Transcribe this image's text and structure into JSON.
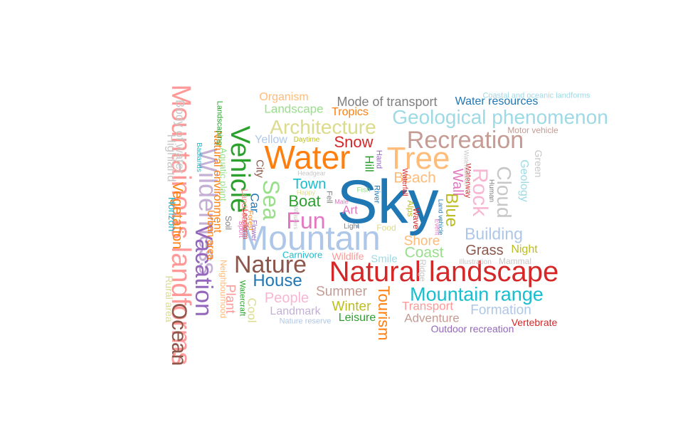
{
  "words": [
    {
      "text": "Sky",
      "color": "#1f77b4",
      "vertical": false
    },
    {
      "text": "Natural landscape",
      "color": "#d62728",
      "vertical": false
    },
    {
      "text": "Mountain",
      "color": "#aec7e8",
      "vertical": false
    },
    {
      "text": "Tree",
      "color": "#ffbb78",
      "vertical": false
    },
    {
      "text": "Water",
      "color": "#ff7f0e",
      "vertical": false
    },
    {
      "text": "Vehicle",
      "color": "#2ca02c",
      "vertical": true
    },
    {
      "text": "Mountainous landforms",
      "color": "#ff9896",
      "vertical": true
    },
    {
      "text": "Wilderness",
      "color": "#c5b0d5",
      "vertical": true
    },
    {
      "text": "Vacation",
      "color": "#9467bd",
      "vertical": true
    },
    {
      "text": "Recreation",
      "color": "#c49c94",
      "vertical": false
    },
    {
      "text": "Architecture",
      "color": "#dbdb8d",
      "vertical": false
    },
    {
      "text": "Geological phenomenon",
      "color": "#9edae5",
      "vertical": false
    },
    {
      "text": "Sea",
      "color": "#98df8a",
      "vertical": true
    },
    {
      "text": "Fun",
      "color": "#e377c2",
      "vertical": false
    },
    {
      "text": "Nature",
      "color": "#8c564b",
      "vertical": false
    },
    {
      "text": "Mountain range",
      "color": "#17becf",
      "vertical": false
    },
    {
      "text": "Rock",
      "color": "#f7b6d2",
      "vertical": true
    },
    {
      "text": "Cloud",
      "color": "#c7c7c7",
      "vertical": true
    },
    {
      "text": "Blue",
      "color": "#bcbd22",
      "vertical": true
    },
    {
      "text": "Ocean",
      "color": "#8c564b",
      "vertical": true
    },
    {
      "text": "House",
      "color": "#1f77b4",
      "vertical": false
    },
    {
      "text": "Building",
      "color": "#aec7e8",
      "vertical": false
    },
    {
      "text": "Tourism",
      "color": "#ff7f0e",
      "vertical": true
    },
    {
      "text": "Vegetation",
      "color": "#ff7f0e",
      "vertical": true
    },
    {
      "text": "Body of water",
      "color": "#c7c7c7",
      "vertical": true
    },
    {
      "text": "Highland",
      "color": "#c7c7c7",
      "vertical": true
    },
    {
      "text": "Natural environment",
      "color": "#ff7f0e",
      "vertical": true
    },
    {
      "text": "Beach",
      "color": "#ffbb78",
      "vertical": false
    },
    {
      "text": "Snow",
      "color": "#d62728",
      "vertical": false
    },
    {
      "text": "Boat",
      "color": "#2ca02c",
      "vertical": false
    },
    {
      "text": "Grass",
      "color": "#8c564b",
      "vertical": false
    },
    {
      "text": "Coast",
      "color": "#98df8a",
      "vertical": false
    },
    {
      "text": "Shore",
      "color": "#ffbb78",
      "vertical": false
    },
    {
      "text": "Winter",
      "color": "#bcbd22",
      "vertical": false
    },
    {
      "text": "Summer",
      "color": "#c49c94",
      "vertical": false
    },
    {
      "text": "People",
      "color": "#f7b6d2",
      "vertical": false
    },
    {
      "text": "Town",
      "color": "#17becf",
      "vertical": false
    },
    {
      "text": "Formation",
      "color": "#aec7e8",
      "vertical": false
    },
    {
      "text": "Mode of transport",
      "color": "#7f7f7f",
      "vertical": false
    },
    {
      "text": "Landscape",
      "color": "#98df8a",
      "vertical": false
    },
    {
      "text": "Wall",
      "color": "#e377c2",
      "vertical": true
    },
    {
      "text": "Landmark",
      "color": "#c5b0d5",
      "vertical": false
    },
    {
      "text": "Transport",
      "color": "#ff9896",
      "vertical": false
    },
    {
      "text": "Adventure",
      "color": "#c49c94",
      "vertical": false
    },
    {
      "text": "Geology",
      "color": "#9edae5",
      "vertical": true
    },
    {
      "text": "Art",
      "color": "#e377c2",
      "vertical": false
    },
    {
      "text": "Car",
      "color": "#1f77b4",
      "vertical": true
    },
    {
      "text": "Water resources",
      "color": "#1f77b4",
      "vertical": false
    },
    {
      "text": "Organism",
      "color": "#ffbb78",
      "vertical": false
    },
    {
      "text": "Night",
      "color": "#bcbd22",
      "vertical": false
    },
    {
      "text": "Plant",
      "color": "#ff9896",
      "vertical": true
    },
    {
      "text": "Cool",
      "color": "#dbdb8d",
      "vertical": true
    },
    {
      "text": "Tropics",
      "color": "#ff7f0e",
      "vertical": false
    },
    {
      "text": "Leisure",
      "color": "#2ca02c",
      "vertical": false
    },
    {
      "text": "Yellow",
      "color": "#aec7e8",
      "vertical": false
    },
    {
      "text": "Vertebrate",
      "color": "#d62728",
      "vertical": false
    },
    {
      "text": "Hill",
      "color": "#2ca02c",
      "vertical": true
    },
    {
      "text": "Smile",
      "color": "#9edae5",
      "vertical": false
    },
    {
      "text": "Outdoor recreation",
      "color": "#9467bd",
      "vertical": false
    },
    {
      "text": "City",
      "color": "#8c564b",
      "vertical": true
    },
    {
      "text": "Wildlife",
      "color": "#ff9896",
      "vertical": false
    },
    {
      "text": "Mammal",
      "color": "#c7c7c7",
      "vertical": false
    },
    {
      "text": "Carnivore",
      "color": "#17becf",
      "vertical": false
    },
    {
      "text": "Green",
      "color": "#c7c7c7",
      "vertical": true
    },
    {
      "text": "Horizon",
      "color": "#17becf",
      "vertical": true
    },
    {
      "text": "Urban area",
      "color": "#ff7f0e",
      "vertical": true
    },
    {
      "text": "Motor vehicle",
      "color": "#c49c94",
      "vertical": false
    },
    {
      "text": "Rural area",
      "color": "#dbdb8d",
      "vertical": true
    },
    {
      "text": "Nature reserve",
      "color": "#aec7e8",
      "vertical": false
    },
    {
      "text": "Food",
      "color": "#dbdb8d",
      "vertical": false
    },
    {
      "text": "Aquatic plant",
      "color": "#98df8a",
      "vertical": true
    },
    {
      "text": "Ridge",
      "color": "#c7c7c7",
      "vertical": true
    },
    {
      "text": "Coastal and oceanic landforms",
      "color": "#9edae5",
      "vertical": false
    },
    {
      "text": "Alps",
      "color": "#bcbd22",
      "vertical": true
    },
    {
      "text": "Wave",
      "color": "#d62728",
      "vertical": true
    },
    {
      "text": "River",
      "color": "#1f77b4",
      "vertical": true
    },
    {
      "text": "Neighbourhood",
      "color": "#ffbb78",
      "vertical": true
    },
    {
      "text": "Watercraft",
      "color": "#2ca02c",
      "vertical": true
    },
    {
      "text": "Fish",
      "color": "#98df8a",
      "vertical": false
    },
    {
      "text": "Human",
      "color": "#7f7f7f",
      "vertical": true
    },
    {
      "text": "Landscape",
      "color": "#ff9896",
      "vertical": true
    },
    {
      "text": "Fell",
      "color": "#7f7f7f",
      "vertical": true
    },
    {
      "text": "Waterway",
      "color": "#d62728",
      "vertical": true
    },
    {
      "text": "Hand",
      "color": "#9467bd",
      "vertical": true
    },
    {
      "text": "Waterfall",
      "color": "#d62728",
      "vertical": true
    },
    {
      "text": "Daytime",
      "color": "#bcbd22",
      "vertical": false
    },
    {
      "text": "Light",
      "color": "#7f7f7f",
      "vertical": false
    },
    {
      "text": "Male",
      "color": "#e377c2",
      "vertical": false
    },
    {
      "text": "Illustration",
      "color": "#c7c7c7",
      "vertical": false
    },
    {
      "text": "Happy",
      "color": "#dbdb8d",
      "vertical": false
    },
    {
      "text": "Headgear",
      "color": "#c7c7c7",
      "vertical": false
    },
    {
      "text": "Event",
      "color": "#e377c2",
      "vertical": true
    },
    {
      "text": "Land vehicle",
      "color": "#1f77b4",
      "vertical": true
    },
    {
      "text": "Watercourse",
      "color": "#c7c7c7",
      "vertical": true
    },
    {
      "text": "Badlands",
      "color": "#17becf",
      "vertical": true
    },
    {
      "text": "Landscaping",
      "color": "#2ca02c",
      "vertical": true
    },
    {
      "text": "Whiskers",
      "color": "#c7c7c7",
      "vertical": true
    },
    {
      "text": "Landform",
      "color": "#d62728",
      "vertical": true
    },
    {
      "text": "Forest",
      "color": "#ff7f0e",
      "vertical": true
    },
    {
      "text": "Flower",
      "color": "#9467bd",
      "vertical": true
    },
    {
      "text": "Sport",
      "color": "#e377c2",
      "vertical": true
    },
    {
      "text": "Soil",
      "color": "#7f7f7f",
      "vertical": true
    }
  ]
}
